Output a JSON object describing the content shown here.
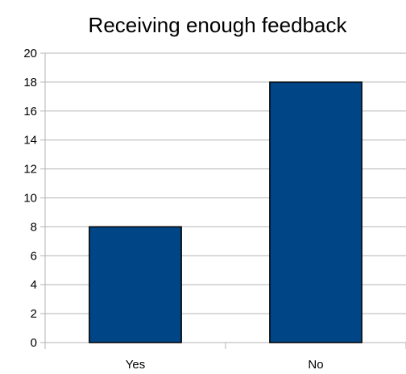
{
  "chart_data": {
    "type": "bar",
    "title": "Receiving enough feedback",
    "categories": [
      "Yes",
      "No"
    ],
    "values": [
      8,
      18
    ],
    "xlabel": "",
    "ylabel": "",
    "ylim": [
      0,
      20
    ],
    "yticks": [
      0,
      2,
      4,
      6,
      8,
      10,
      12,
      14,
      16,
      18,
      20
    ],
    "grid": true,
    "legend": "none",
    "colors": {
      "bar": "#004586",
      "bar_border": "#000000",
      "grid": "#b3b3b3",
      "text": "#000000"
    }
  }
}
